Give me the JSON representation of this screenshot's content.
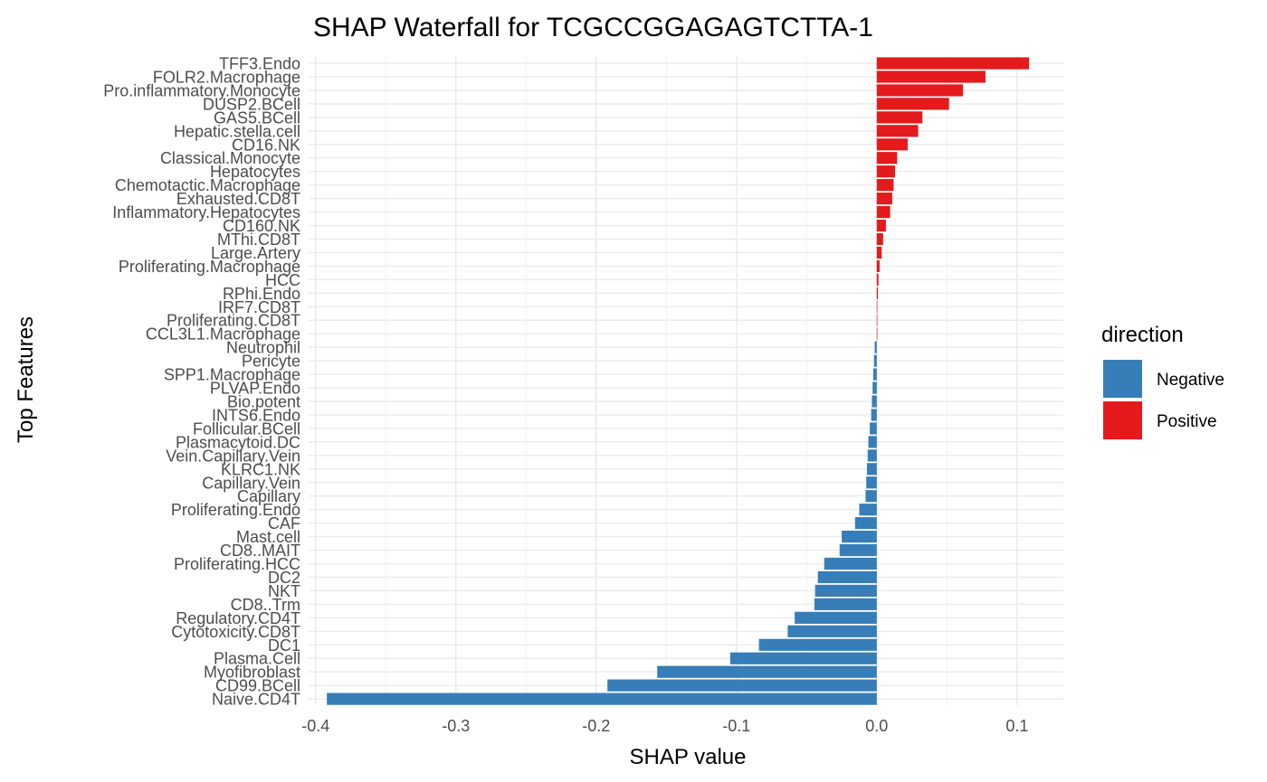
{
  "chart_data": {
    "type": "bar",
    "orientation": "horizontal",
    "title": "SHAP Waterfall for TCGCCGGAGAGTCTTA-1",
    "xlabel": "SHAP value",
    "ylabel": "Top Features",
    "xlim": [
      -0.405,
      0.133
    ],
    "xticks": [
      -0.4,
      -0.3,
      -0.2,
      -0.1,
      0.0,
      0.1
    ],
    "xtick_labels": [
      "-0.4",
      "-0.3",
      "-0.2",
      "-0.1",
      "0.0",
      "0.1"
    ],
    "grid": true,
    "legend": {
      "title": "direction",
      "placement": "right",
      "entries": [
        {
          "label": "Negative",
          "color": "#377EB8"
        },
        {
          "label": "Positive",
          "color": "#E41A1C"
        }
      ]
    },
    "colors": {
      "Negative": "#377EB8",
      "Positive": "#E41A1C"
    },
    "categories": [
      "TFF3.Endo",
      "FOLR2.Macrophage",
      "Pro.inflammatory.Monocyte",
      "DUSP2.BCell",
      "GAS5.BCell",
      "Hepatic.stella.cell",
      "CD16.NK",
      "Classical.Monocyte",
      "Hepatocytes",
      "Chemotactic.Macrophage",
      "Exhausted.CD8T",
      "Inflammatory.Hepatocytes",
      "CD160.NK",
      "MThi.CD8T",
      "Large.Artery",
      "Proliferating.Macrophage",
      "HCC",
      "RPhi.Endo",
      "IRF7.CD8T",
      "Proliferating.CD8T",
      "CCL3L1.Macrophage",
      "Neutrophil",
      "Pericyte",
      "SPP1.Macrophage",
      "PLVAP.Endo",
      "Bio.potent",
      "INTS6.Endo",
      "Follicular.BCell",
      "Plasmacytoid.DC",
      "Vein.Capillary.Vein",
      "KLRC1.NK",
      "Capillary.Vein",
      "Capillary",
      "Proliferating.Endo",
      "CAF",
      "Mast.cell",
      "CD8..MAIT",
      "Proliferating.HCC",
      "DC2",
      "NKT",
      "CD8..Trm",
      "Regulatory.CD4T",
      "Cytotoxicity.CD8T",
      "DC1",
      "Plasma.Cell",
      "Myofibroblast",
      "CD99.BCell",
      "Naive.CD4T"
    ],
    "values": [
      0.1085,
      0.0775,
      0.0615,
      0.0515,
      0.0325,
      0.0295,
      0.022,
      0.0145,
      0.013,
      0.012,
      0.011,
      0.0095,
      0.0065,
      0.0045,
      0.0035,
      0.002,
      0.0012,
      0.0008,
      0.0003,
      0.0001,
      0.0,
      -0.0015,
      -0.002,
      -0.0025,
      -0.003,
      -0.0035,
      -0.004,
      -0.005,
      -0.006,
      -0.0065,
      -0.007,
      -0.0075,
      -0.008,
      -0.0125,
      -0.0155,
      -0.025,
      -0.0265,
      -0.0375,
      -0.042,
      -0.044,
      -0.0445,
      -0.0585,
      -0.0635,
      -0.084,
      -0.1045,
      -0.1565,
      -0.192,
      -0.392
    ]
  }
}
